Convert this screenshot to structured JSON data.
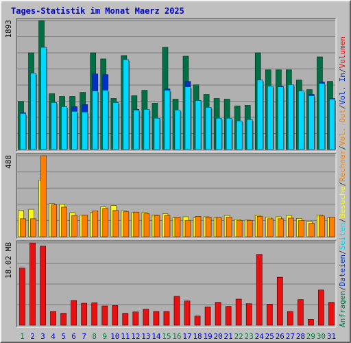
{
  "chart_data": {
    "type": "bar",
    "title": "Tages-Statistik im Monat Maerz 2025",
    "categories": [
      "1",
      "2",
      "3",
      "4",
      "5",
      "6",
      "7",
      "8",
      "9",
      "10",
      "11",
      "12",
      "13",
      "14",
      "15",
      "16",
      "17",
      "18",
      "19",
      "20",
      "21",
      "22",
      "23",
      "24",
      "25",
      "26",
      "27",
      "28",
      "29",
      "30",
      "31"
    ],
    "day_label_colors": [
      "#008040",
      "#0000cc",
      "#0000cc",
      "#0000cc",
      "#0000cc",
      "#0000cc",
      "#0000cc",
      "#008040",
      "#008040",
      "#0000cc",
      "#0000cc",
      "#0000cc",
      "#0000cc",
      "#0000cc",
      "#008040",
      "#008040",
      "#0000cc",
      "#0000cc",
      "#0000cc",
      "#0000cc",
      "#0000cc",
      "#008040",
      "#008040",
      "#0000cc",
      "#0000cc",
      "#0000cc",
      "#0000cc",
      "#0000cc",
      "#008040",
      "#008040",
      "#0000cc"
    ],
    "colors": {
      "anfragen": "#006f46",
      "dateien": "#0030cc",
      "seiten": "#00d8ff",
      "besuche": "#f8f820",
      "rechner": "#ff8000",
      "volumen": "#e81010",
      "title": "#0000cc",
      "panel_bg": "#c0c0c0",
      "chart_bg": "#b0b0b0"
    },
    "panels": [
      {
        "ymax_label": "1893",
        "ymax": 1893,
        "series": [
          {
            "name": "Anfragen",
            "values": [
              705,
              1420,
              1893,
              820,
              780,
              780,
              840,
              1420,
              1330,
              750,
              1380,
              790,
              870,
              680,
              1500,
              740,
              1370,
              950,
              810,
              750,
              740,
              640,
              650,
              1420,
              1170,
              1170,
              1170,
              1020,
              880,
              1360,
              1000
            ]
          },
          {
            "name": "Dateien",
            "values": [
              540,
              1120,
              1500,
              690,
              630,
              630,
              660,
              1110,
              1100,
              690,
              1300,
              590,
              590,
              460,
              890,
              520,
              1000,
              720,
              620,
              460,
              460,
              420,
              440,
              1020,
              930,
              930,
              950,
              860,
              810,
              990,
              750
            ]
          },
          {
            "name": "Seiten",
            "values": [
              530,
              1120,
              1500,
              690,
              630,
              560,
              550,
              860,
              870,
              690,
              1320,
              580,
              590,
              460,
              870,
              580,
              920,
              720,
              620,
              460,
              460,
              420,
              440,
              1020,
              930,
              920,
              950,
              860,
              790,
              970,
              740
            ]
          }
        ]
      },
      {
        "ymax_label": "488",
        "ymax": 488,
        "series": [
          {
            "name": "Besuche",
            "values": [
              158,
              165,
              340,
              200,
              195,
              145,
              130,
              145,
              180,
              188,
              155,
              145,
              145,
              130,
              138,
              115,
              120,
              115,
              120,
              115,
              128,
              105,
              100,
              128,
              118,
              120,
              128,
              110,
              92,
              130,
              115
            ]
          },
          {
            "name": "Rechner",
            "values": [
              108,
              108,
              488,
              192,
              178,
              128,
              130,
              155,
              170,
              158,
              150,
              148,
              138,
              128,
              128,
              118,
              98,
              122,
              118,
              115,
              118,
              98,
              98,
              122,
              108,
              108,
              112,
              98,
              80,
              125,
              118
            ]
          }
        ]
      },
      {
        "ymax_label": "18.02 MB",
        "ymax": 18.02,
        "series": [
          {
            "name": "Volumen",
            "values": [
              12.5,
              18.0,
              17.3,
              3.0,
              2.6,
              5.4,
              4.8,
              4.9,
              4.2,
              4.3,
              2.6,
              2.9,
              3.5,
              3.0,
              3.0,
              6.3,
              5.3,
              2.0,
              4.0,
              5.0,
              4.1,
              5.7,
              4.7,
              15.5,
              4.6,
              10.5,
              3.0,
              5.6,
              1.3,
              7.7,
              5.0
            ]
          }
        ]
      }
    ],
    "right_legend": [
      {
        "text": "Anfragen",
        "color": "#006f46"
      },
      {
        "text": "/",
        "color": "#404040"
      },
      {
        "text": "Dateien",
        "color": "#0030cc"
      },
      {
        "text": "/",
        "color": "#404040"
      },
      {
        "text": "Seiten",
        "color": "#00d8ff"
      },
      {
        "text": "/",
        "color": "#404040"
      },
      {
        "text": "Besuche",
        "color": "#f8f820"
      },
      {
        "text": "/",
        "color": "#404040"
      },
      {
        "text": "Rechner",
        "color": "#ff8000"
      },
      {
        "text": "/",
        "color": "#404040"
      },
      {
        "text": "Vol. Out",
        "color": "#ff8000"
      },
      {
        "text": "/",
        "color": "#404040"
      },
      {
        "text": "Vol. In",
        "color": "#0030cc"
      },
      {
        "text": "/",
        "color": "#404040"
      },
      {
        "text": "Volumen",
        "color": "#e81010"
      }
    ]
  }
}
